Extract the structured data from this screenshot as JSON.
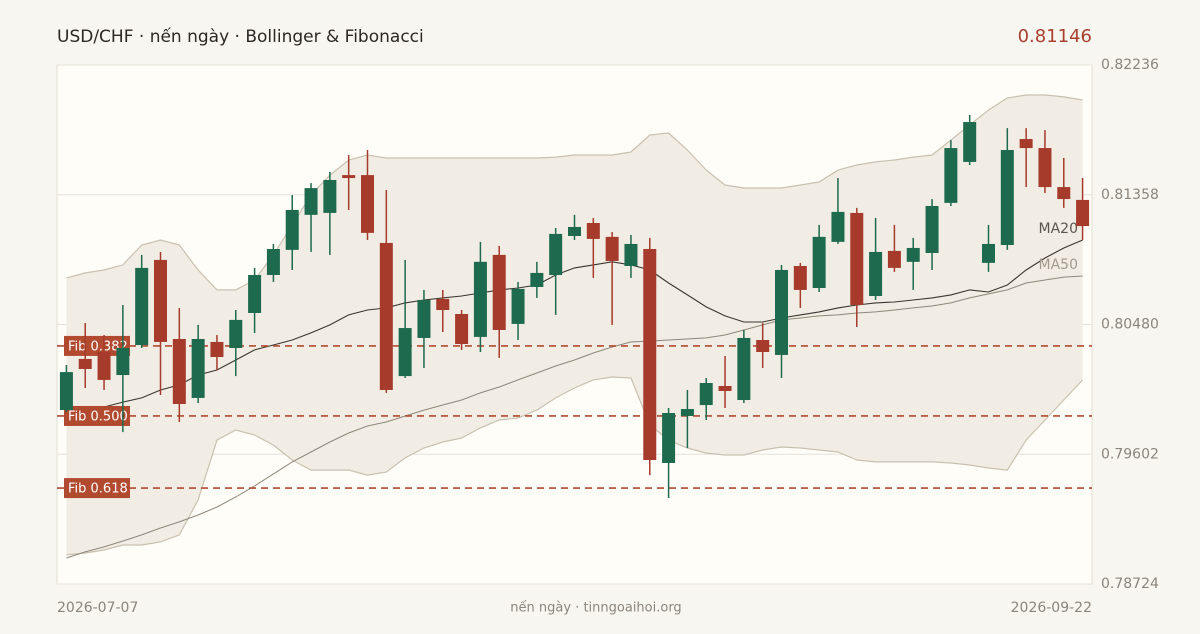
{
  "chart_data": {
    "type": "candlestick",
    "title": "USD/CHF · nến ngày · Bollinger & Fibonacci",
    "price_label": "0.81146",
    "source": "nến ngày · tinngoaihoi.org",
    "categories": [
      "2026-07-07",
      null,
      null,
      null,
      null,
      null,
      null,
      null,
      null,
      null,
      null,
      null,
      null,
      null,
      null,
      null,
      null,
      null,
      null,
      null,
      null,
      null,
      null,
      null,
      null,
      null,
      null,
      null,
      null,
      null,
      null,
      null,
      null,
      null,
      null,
      null,
      null,
      null,
      null,
      null,
      null,
      null,
      null,
      null,
      null,
      null,
      null,
      null,
      null,
      null,
      null,
      null,
      null,
      null,
      "2026-09-22"
    ],
    "open": [
      0.79901,
      0.80247,
      0.80294,
      0.80138,
      0.80341,
      0.80917,
      0.80382,
      0.79983,
      0.80362,
      0.80321,
      0.80558,
      0.80815,
      0.80985,
      0.81222,
      0.81235,
      0.81491,
      0.81491,
      0.81032,
      0.80131,
      0.80389,
      0.80653,
      0.80551,
      0.80396,
      0.80951,
      0.80484,
      0.80734,
      0.80815,
      0.81079,
      0.81167,
      0.81073,
      0.80876,
      0.80991,
      0.79543,
      0.79861,
      0.79935,
      0.80064,
      0.79969,
      0.80375,
      0.80274,
      0.80876,
      0.80727,
      0.81039,
      0.81235,
      0.80673,
      0.80978,
      0.80904,
      0.80964,
      0.81303,
      0.8158,
      0.80897,
      0.81018,
      0.81735,
      0.81674,
      0.8141,
      0.81323
    ],
    "high": [
      0.80206,
      0.8049,
      0.80409,
      0.80612,
      0.80951,
      0.80971,
      0.80592,
      0.80477,
      0.80409,
      0.80578,
      0.80863,
      0.81025,
      0.81356,
      0.81437,
      0.81512,
      0.81627,
      0.81661,
      0.8139,
      0.80917,
      0.80714,
      0.80714,
      0.80578,
      0.81039,
      0.81012,
      0.80768,
      0.80904,
      0.81133,
      0.81222,
      0.81201,
      0.81106,
      0.81086,
      0.81066,
      0.79915,
      0.80037,
      0.80118,
      0.80267,
      0.80443,
      0.8049,
      0.80883,
      0.80897,
      0.81154,
      0.81471,
      0.81269,
      0.81201,
      0.81154,
      0.81066,
      0.81329,
      0.81728,
      0.81898,
      0.81154,
      0.81809,
      0.81809,
      0.81796,
      0.81607,
      0.81471
    ],
    "low": [
      0.79888,
      0.8005,
      0.80037,
      0.79752,
      0.80321,
      0.80003,
      0.7982,
      0.79949,
      0.80172,
      0.80131,
      0.80423,
      0.80768,
      0.80849,
      0.80971,
      0.80951,
      0.81255,
      0.81052,
      0.80017,
      0.80118,
      0.80186,
      0.80429,
      0.80308,
      0.80294,
      0.80254,
      0.80375,
      0.8066,
      0.80545,
      0.81052,
      0.80795,
      0.80477,
      0.80795,
      0.79461,
      0.79306,
      0.79644,
      0.79834,
      0.79915,
      0.79949,
      0.80186,
      0.80118,
      0.80592,
      0.807,
      0.81025,
      0.80463,
      0.80646,
      0.80836,
      0.80714,
      0.80849,
      0.81282,
      0.81559,
      0.80836,
      0.80985,
      0.8141,
      0.8137,
      0.81269,
      0.81052
    ],
    "close": [
      0.80158,
      0.80179,
      0.80105,
      0.80321,
      0.80863,
      0.80362,
      0.79942,
      0.80382,
      0.8026,
      0.80511,
      0.80815,
      0.80991,
      0.81255,
      0.81403,
      0.81458,
      0.81471,
      0.811,
      0.80037,
      0.80456,
      0.80646,
      0.80578,
      0.80348,
      0.80904,
      0.80443,
      0.80721,
      0.80829,
      0.81093,
      0.8114,
      0.81059,
      0.8091,
      0.81025,
      0.79563,
      0.79881,
      0.79908,
      0.80084,
      0.8003,
      0.80389,
      0.80294,
      0.80849,
      0.80714,
      0.81073,
      0.81242,
      0.80612,
      0.80971,
      0.80863,
      0.80998,
      0.81282,
      0.81674,
      0.8185,
      0.81025,
      0.81661,
      0.81674,
      0.8141,
      0.81329,
      0.81146
    ],
    "up_color": "#1d6a4e",
    "down_color": "#a63a2b",
    "bollinger": {
      "color": "#c9c1b0",
      "fill": "#f1ede4",
      "upper": [
        0.80795,
        0.80829,
        0.80849,
        0.80883,
        0.81018,
        0.81052,
        0.81018,
        0.80849,
        0.80714,
        0.80714,
        0.80781,
        0.80951,
        0.81154,
        0.81356,
        0.81491,
        0.81593,
        0.81627,
        0.81607,
        0.81607,
        0.81607,
        0.81607,
        0.81607,
        0.81607,
        0.81607,
        0.81607,
        0.81607,
        0.81613,
        0.81627,
        0.81627,
        0.81627,
        0.81647,
        0.81762,
        0.81776,
        0.81661,
        0.81525,
        0.81424,
        0.81404,
        0.81404,
        0.81404,
        0.81424,
        0.81444,
        0.81525,
        0.81559,
        0.8158,
        0.81593,
        0.81613,
        0.81627,
        0.81728,
        0.8183,
        0.81931,
        0.82013,
        0.82033,
        0.82033,
        0.8202,
        0.81999
      ],
      "lower": [
        0.78921,
        0.78934,
        0.78954,
        0.78988,
        0.78988,
        0.79009,
        0.79056,
        0.79293,
        0.79698,
        0.79766,
        0.79732,
        0.79664,
        0.79563,
        0.79495,
        0.79495,
        0.79495,
        0.79461,
        0.79481,
        0.79577,
        0.79644,
        0.79685,
        0.79712,
        0.7978,
        0.79834,
        0.79847,
        0.79901,
        0.79983,
        0.8005,
        0.80105,
        0.80125,
        0.80118,
        0.798,
        0.79698,
        0.79644,
        0.7961,
        0.79597,
        0.79597,
        0.79631,
        0.79651,
        0.79644,
        0.79631,
        0.79617,
        0.79563,
        0.7955,
        0.7955,
        0.7955,
        0.7955,
        0.79543,
        0.79529,
        0.79509,
        0.79495,
        0.79698,
        0.79834,
        0.79969,
        0.80105
      ]
    },
    "series": [
      {
        "name": "MA20",
        "color": "#3a3530",
        "label_color": "#5a554e",
        "values": [
          0.79868,
          0.79901,
          0.79922,
          0.79955,
          0.79983,
          0.80037,
          0.80071,
          0.80138,
          0.80172,
          0.8024,
          0.80308,
          0.80341,
          0.80375,
          0.80423,
          0.80477,
          0.80545,
          0.80578,
          0.80592,
          0.80626,
          0.80646,
          0.8066,
          0.80673,
          0.80693,
          0.80714,
          0.80727,
          0.80747,
          0.80815,
          0.80863,
          0.80883,
          0.80904,
          0.80883,
          0.80849,
          0.80761,
          0.8068,
          0.80599,
          0.80538,
          0.80497,
          0.80497,
          0.80524,
          0.80545,
          0.80565,
          0.80592,
          0.80612,
          0.80626,
          0.80632,
          0.80646,
          0.8066,
          0.8068,
          0.80714,
          0.807,
          0.80747,
          0.80849,
          0.8093,
          0.80998,
          0.81052
        ]
      },
      {
        "name": "MA50",
        "color": "#8f877a",
        "label_color": "#a39b8e",
        "values": [
          0.789,
          0.78941,
          0.78975,
          0.79015,
          0.79056,
          0.79103,
          0.79144,
          0.79191,
          0.79245,
          0.79313,
          0.79388,
          0.79469,
          0.7955,
          0.79617,
          0.79685,
          0.79746,
          0.79793,
          0.7982,
          0.79861,
          0.79901,
          0.79935,
          0.79969,
          0.80017,
          0.80057,
          0.80105,
          0.80152,
          0.80199,
          0.8024,
          0.80287,
          0.80328,
          0.80362,
          0.80368,
          0.80375,
          0.80382,
          0.80389,
          0.80409,
          0.80443,
          0.80477,
          0.80511,
          0.80524,
          0.80538,
          0.80545,
          0.80558,
          0.80565,
          0.80578,
          0.80592,
          0.80605,
          0.80626,
          0.8066,
          0.80687,
          0.80714,
          0.80761,
          0.80781,
          0.80801,
          0.80808
        ]
      }
    ],
    "fib": [
      {
        "label": "Fib 0.382",
        "value": 0.80335
      },
      {
        "label": "Fib 0.500",
        "value": 0.79861
      },
      {
        "label": "Fib 0.618",
        "value": 0.79373
      }
    ],
    "fib_color": "#b24a30",
    "ylim": [
      0.78724,
      0.82236
    ],
    "yticks": [
      0.78724,
      0.79602,
      {
        "value": 0.8048,
        "label": "0.80480"
      },
      0.81358,
      0.82236
    ],
    "grid": true
  }
}
